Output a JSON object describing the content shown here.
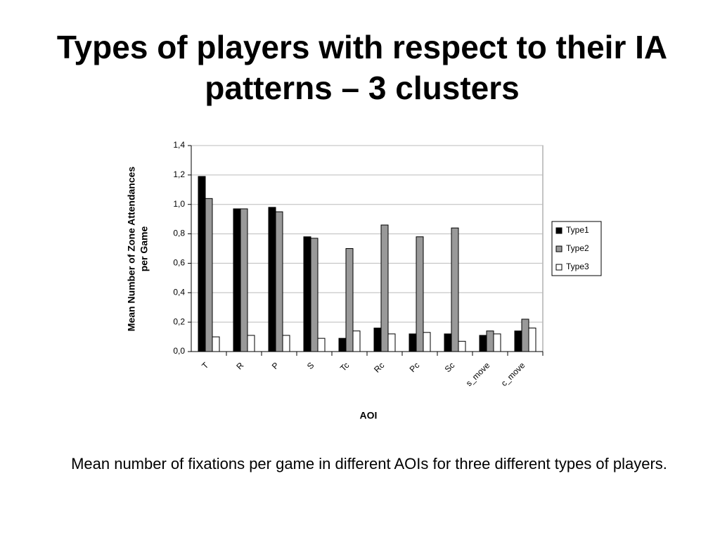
{
  "slide": {
    "title": "Types of players with respect to their IA patterns – 3 clusters",
    "caption": "Mean number of fixations per game in different AOIs for three different types of players."
  },
  "chart_data": {
    "type": "bar",
    "categories": [
      "T",
      "R",
      "P",
      "S",
      "Tc",
      "Rc",
      "Pc",
      "Sc",
      "s_move",
      "c_move"
    ],
    "series": [
      {
        "name": "Type1",
        "color": "#000000",
        "values": [
          1.19,
          0.97,
          0.98,
          0.78,
          0.09,
          0.16,
          0.12,
          0.12,
          0.11,
          0.14
        ]
      },
      {
        "name": "Type2",
        "color": "#999999",
        "values": [
          1.04,
          0.97,
          0.95,
          0.77,
          0.7,
          0.86,
          0.78,
          0.84,
          0.14,
          0.22
        ]
      },
      {
        "name": "Type3",
        "color": "#ffffff",
        "values": [
          0.1,
          0.11,
          0.11,
          0.09,
          0.14,
          0.12,
          0.13,
          0.07,
          0.12,
          0.16
        ]
      }
    ],
    "xlabel": "AOI",
    "ylabel": [
      "Mean Number of Zone Attendances",
      "per Game"
    ],
    "ylim": [
      0,
      1.4
    ],
    "yticks": [
      {
        "value": 0,
        "label": "0,0"
      },
      {
        "value": 0.2,
        "label": "0,2"
      },
      {
        "value": 0.4,
        "label": "0,4"
      },
      {
        "value": 0.6,
        "label": "0,6"
      },
      {
        "value": 0.8,
        "label": "0,8"
      },
      {
        "value": 1.0,
        "label": "1,0"
      },
      {
        "value": 1.2,
        "label": "1,2"
      },
      {
        "value": 1.4,
        "label": "1,4"
      }
    ],
    "grid": true,
    "legend": "right"
  }
}
